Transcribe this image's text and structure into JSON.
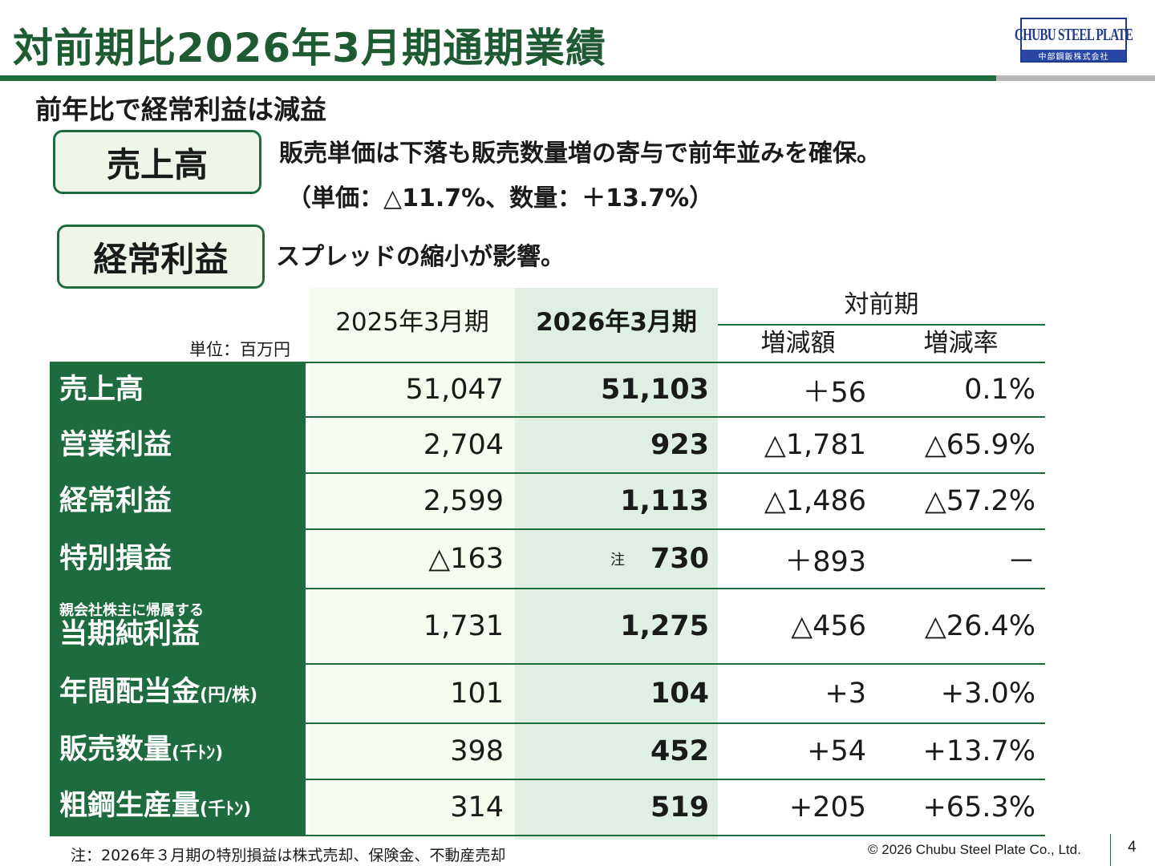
{
  "header": {
    "title": "対前期比2026年3月期通期業績",
    "logo_main": "CHUBU STEEL PLATE",
    "logo_sub": "中部鋼鈑株式会社"
  },
  "subtitle": "前年比で経常利益は減益",
  "highlights": [
    {
      "tag": "売上高",
      "lines": [
        "販売単価は下落も販売数量増の寄与で前年並みを確保。",
        "（単価：△11.7%、数量：＋13.7%）"
      ]
    },
    {
      "tag": "経常利益",
      "lines": [
        "スプレッドの縮小が影響。"
      ]
    }
  ],
  "table": {
    "unit": "単位：百万円",
    "col_prev": "2025年3月期",
    "col_cur": "2026年3月期",
    "col_yoy": "対前期",
    "col_diff": "増減額",
    "col_rate": "増減率",
    "rows": [
      {
        "pre": "",
        "label": "売上高",
        "suffix": "",
        "prev": "51,047",
        "note": "",
        "cur": "51,103",
        "diff": "＋56",
        "rate": "0.1%"
      },
      {
        "pre": "",
        "label": "営業利益",
        "suffix": "",
        "prev": "2,704",
        "note": "",
        "cur": "923",
        "diff": "△1,781",
        "rate": "△65.9%"
      },
      {
        "pre": "",
        "label": "経常利益",
        "suffix": "",
        "prev": "2,599",
        "note": "",
        "cur": "1,113",
        "diff": "△1,486",
        "rate": "△57.2%"
      },
      {
        "pre": "",
        "label": "特別損益",
        "suffix": "",
        "prev": "△163",
        "note": "注",
        "cur": "730",
        "diff": "＋893",
        "rate": "－"
      },
      {
        "pre": "親会社株主に帰属する",
        "label": "当期純利益",
        "suffix": "",
        "prev": "1,731",
        "note": "",
        "cur": "1,275",
        "diff": "△456",
        "rate": "△26.4%"
      },
      {
        "pre": "",
        "label": "年間配当金",
        "suffix": "(円/株)",
        "prev": "101",
        "note": "",
        "cur": "104",
        "diff": "+3",
        "rate": "+3.0%"
      },
      {
        "pre": "",
        "label": "販売数量",
        "suffix": "(千ﾄﾝ)",
        "prev": "398",
        "note": "",
        "cur": "452",
        "diff": "+54",
        "rate": "+13.7%"
      },
      {
        "pre": "",
        "label": "粗鋼生産量",
        "suffix": "(千ﾄﾝ)",
        "prev": "314",
        "note": "",
        "cur": "519",
        "diff": "+205",
        "rate": "+65.3%"
      }
    ]
  },
  "footer": {
    "note": "注：2026年３月期の特別損益は株式売却、保険金、不動産売却",
    "copyright": "© 2026 Chubu Steel Plate Co., Ltd.",
    "page": "4"
  },
  "colors": {
    "brand_green": "#1e6b3d",
    "title_green": "#1e5a32",
    "logo_blue": "#1f3a8a"
  }
}
